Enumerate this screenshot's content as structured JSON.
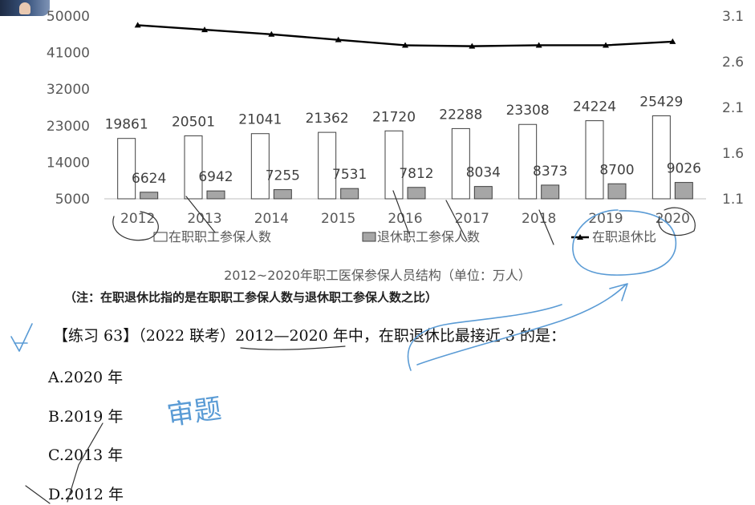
{
  "chart_data": {
    "type": "bar+line",
    "title": "2012~2020年职工医保参保人员结构（单位：万人）",
    "categories": [
      "2012",
      "2013",
      "2014",
      "2015",
      "2016",
      "2017",
      "2018",
      "2019",
      "2020"
    ],
    "series": [
      {
        "name": "在职职工参保人数",
        "kind": "bar",
        "color": "#ffffff",
        "values": [
          19861,
          20501,
          21041,
          21362,
          21720,
          22288,
          23308,
          24224,
          25429
        ]
      },
      {
        "name": "退休职工参保人数",
        "kind": "bar",
        "color": "#a6a6a6",
        "values": [
          6624,
          6942,
          7255,
          7531,
          7812,
          8034,
          8373,
          8700,
          9026
        ]
      },
      {
        "name": "在职退休比",
        "kind": "line",
        "axis": "right",
        "color": "#000000",
        "values": [
          3.0,
          2.95,
          2.9,
          2.84,
          2.78,
          2.77,
          2.78,
          2.78,
          2.82
        ]
      }
    ],
    "left_axis": {
      "min": 5000,
      "max": 50000,
      "ticks": [
        "5000",
        "14000",
        "23000",
        "32000",
        "41000",
        "50000"
      ]
    },
    "right_axis": {
      "min": 1.1,
      "max": 3.1,
      "ticks": [
        "1.1",
        "1.6",
        "2.1",
        "2.6",
        "3.1"
      ]
    },
    "legend_position": "bottom"
  },
  "note": "（注：在职退休比指的是在职职工参保人数与退休职工参保人数之比）",
  "question": "【练习 63】（2022 联考）2012—2020 年中，在职退休比最接近 3 的是：",
  "options": [
    "A.2020 年",
    "B.2019 年",
    "C.2013 年",
    "D.2012 年"
  ],
  "handwriting": "审题"
}
